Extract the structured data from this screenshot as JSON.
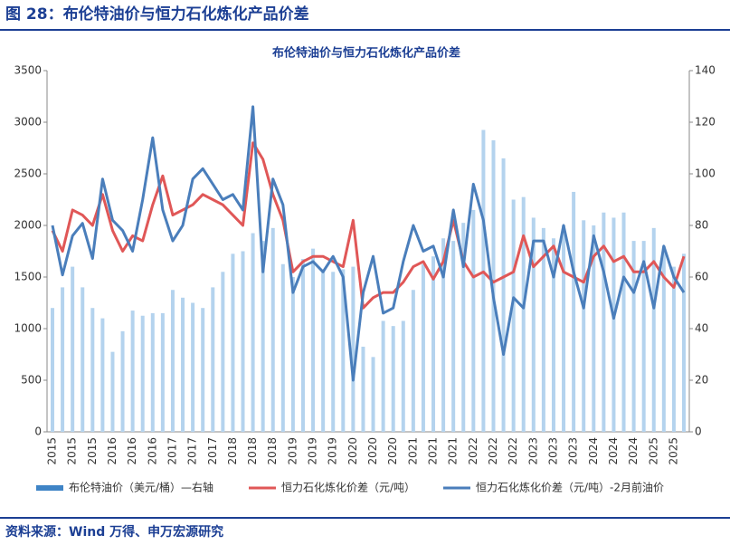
{
  "header": {
    "title": "图 28：布伦特油价与恒力石化炼化产品价差"
  },
  "footer": {
    "source": "资料来源：Wind 万得、申万宏源研究"
  },
  "chart_data": {
    "type": "bar-line",
    "title": "布伦特油价与恒力石化炼化产品价差",
    "categories": [
      "2015",
      null,
      "2015",
      null,
      "2015",
      null,
      "2016",
      null,
      "2016",
      null,
      "2016",
      null,
      "2017",
      null,
      "2017",
      null,
      "2017",
      null,
      "2018",
      null,
      "2018",
      null,
      "2018",
      null,
      "2019",
      null,
      "2019",
      null,
      "2019",
      null,
      "2020",
      null,
      "2020",
      null,
      "2020",
      null,
      "2021",
      null,
      "2021",
      null,
      "2021",
      null,
      "2022",
      null,
      "2022",
      null,
      "2022",
      null,
      "2023",
      null,
      "2023",
      null,
      "2023",
      null,
      "2024",
      null,
      "2024",
      null,
      "2024",
      null,
      "2025",
      null,
      "2025",
      null
    ],
    "series": [
      {
        "name": "布伦特油价（美元/桶）—右轴",
        "type": "bar",
        "axis": "y2",
        "color": "#b4d3ee",
        "values": [
          48,
          56,
          64,
          56,
          48,
          44,
          31,
          39,
          47,
          45,
          46,
          46,
          55,
          52,
          50,
          48,
          56,
          62,
          69,
          70,
          77,
          74,
          79,
          65,
          60,
          67,
          71,
          63,
          62,
          63,
          64,
          33,
          29,
          43,
          41,
          43,
          55,
          65,
          68,
          75,
          74,
          81,
          86,
          117,
          113,
          106,
          90,
          91,
          83,
          79,
          75,
          80,
          93,
          82,
          80,
          85,
          83,
          85,
          74,
          74,
          79,
          72,
          64,
          69
        ]
      },
      {
        "name": "恒力石化炼化价差（元/吨）",
        "type": "line",
        "color": "#e05757",
        "values": [
          1950,
          1750,
          2150,
          2100,
          2000,
          2300,
          1950,
          1750,
          1900,
          1850,
          2200,
          2480,
          2100,
          2150,
          2200,
          2300,
          2250,
          2200,
          2100,
          2000,
          2800,
          2640,
          2300,
          2050,
          1550,
          1650,
          1700,
          1700,
          1650,
          1600,
          2050,
          1200,
          1300,
          1350,
          1350,
          1450,
          1600,
          1650,
          1480,
          1650,
          2050,
          1650,
          1500,
          1550,
          1450,
          1500,
          1550,
          1900,
          1600,
          1700,
          1800,
          1550,
          1500,
          1450,
          1700,
          1800,
          1650,
          1700,
          1550,
          1550,
          1650,
          1500,
          1400,
          1700
        ]
      },
      {
        "name": "恒力石化炼化价差（元/吨）-2月前油价",
        "type": "line",
        "color": "#4a7ebb",
        "values": [
          2000,
          1520,
          1900,
          2020,
          1680,
          2450,
          2050,
          1950,
          1750,
          2250,
          2850,
          2150,
          1850,
          2000,
          2450,
          2550,
          2400,
          2250,
          2300,
          2150,
          3150,
          1550,
          2450,
          2200,
          1350,
          1600,
          1650,
          1550,
          1700,
          1500,
          500,
          1350,
          1700,
          1150,
          1200,
          1650,
          2000,
          1750,
          1800,
          1500,
          2150,
          1600,
          2400,
          2050,
          1300,
          750,
          1300,
          1200,
          1850,
          1850,
          1500,
          2000,
          1550,
          1200,
          1900,
          1550,
          1100,
          1500,
          1350,
          1650,
          1200,
          1800,
          1500,
          1350
        ]
      }
    ],
    "ylim": [
      0,
      3500
    ],
    "yticks": [
      0,
      500,
      1000,
      1500,
      2000,
      2500,
      3000,
      3500
    ],
    "y2lim": [
      0,
      140
    ],
    "y2ticks": [
      0,
      20,
      40,
      60,
      80,
      100,
      120,
      140
    ]
  }
}
